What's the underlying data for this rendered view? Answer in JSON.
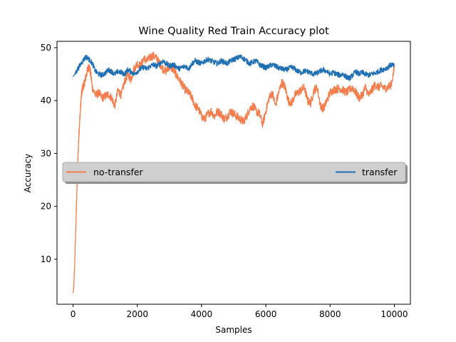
{
  "chart_data": {
    "type": "line",
    "title": "Wine Quality Red Train Accuracy plot",
    "xlabel": "Samples",
    "ylabel": "Accuracy",
    "xlim": [
      -500,
      10500
    ],
    "ylim": [
      1.5,
      51.2
    ],
    "xticks": [
      0,
      2000,
      4000,
      6000,
      8000,
      10000
    ],
    "yticks": [
      10,
      20,
      30,
      40,
      50
    ],
    "grid": false,
    "legend": {
      "placement": "center-left-right spanning",
      "entries": [
        "no-transfer",
        "transfer"
      ]
    },
    "series": [
      {
        "name": "no-transfer",
        "color": "#f47d4d",
        "noise": 0.8,
        "x": [
          0,
          20,
          50,
          80,
          110,
          140,
          170,
          200,
          230,
          260,
          300,
          350,
          400,
          450,
          500,
          550,
          600,
          700,
          800,
          900,
          1000,
          1100,
          1200,
          1300,
          1400,
          1500,
          1600,
          1700,
          1800,
          1900,
          2000,
          2100,
          2200,
          2300,
          2400,
          2500,
          2600,
          2700,
          2800,
          2900,
          3000,
          3100,
          3200,
          3300,
          3400,
          3500,
          3600,
          3700,
          3800,
          3900,
          4000,
          4100,
          4200,
          4300,
          4400,
          4500,
          4600,
          4700,
          4800,
          4900,
          5000,
          5100,
          5200,
          5300,
          5400,
          5500,
          5600,
          5700,
          5800,
          5900,
          6000,
          6100,
          6200,
          6300,
          6400,
          6500,
          6600,
          6700,
          6800,
          6900,
          7000,
          7100,
          7200,
          7300,
          7400,
          7500,
          7600,
          7700,
          7800,
          7900,
          8000,
          8100,
          8200,
          8300,
          8400,
          8500,
          8600,
          8700,
          8800,
          8900,
          9000,
          9100,
          9200,
          9300,
          9400,
          9500,
          9600,
          9700,
          9800,
          9900,
          10000
        ],
        "values": [
          3.6,
          4.5,
          9.0,
          15.0,
          21.0,
          27.0,
          32.0,
          35.5,
          38.5,
          41.0,
          42.5,
          43.2,
          44.5,
          45.8,
          46.5,
          45.0,
          42.5,
          41.0,
          41.5,
          40.5,
          40.8,
          41.2,
          40.5,
          39.0,
          42.0,
          41.0,
          43.5,
          45.0,
          44.0,
          46.0,
          47.0,
          46.5,
          48.0,
          47.5,
          48.2,
          48.5,
          48.0,
          47.0,
          46.0,
          45.5,
          46.5,
          46.0,
          45.0,
          44.0,
          43.0,
          42.0,
          41.5,
          40.5,
          39.0,
          38.5,
          37.0,
          36.5,
          37.5,
          38.0,
          37.0,
          38.0,
          37.5,
          36.5,
          37.0,
          38.0,
          37.5,
          37.0,
          36.5,
          36.0,
          37.0,
          38.5,
          39.0,
          38.0,
          37.5,
          35.5,
          38.0,
          40.5,
          41.5,
          39.0,
          41.5,
          43.5,
          42.5,
          40.0,
          39.5,
          41.0,
          41.5,
          42.0,
          42.5,
          40.0,
          39.5,
          42.0,
          42.5,
          39.0,
          38.5,
          40.0,
          41.5,
          42.0,
          42.2,
          42.3,
          42.0,
          41.5,
          42.0,
          42.5,
          41.5,
          40.5,
          41.0,
          42.5,
          41.0,
          42.0,
          43.0,
          42.5,
          42.8,
          42.3,
          42.5,
          43.0,
          46.0
        ]
      },
      {
        "name": "transfer",
        "color": "#1f6fb4",
        "noise": 0.5,
        "x": [
          0,
          100,
          200,
          300,
          400,
          500,
          600,
          700,
          800,
          900,
          1000,
          1100,
          1200,
          1300,
          1400,
          1500,
          1600,
          1700,
          1800,
          1900,
          2000,
          2100,
          2200,
          2300,
          2400,
          2500,
          2600,
          2700,
          2800,
          2900,
          3000,
          3100,
          3200,
          3300,
          3400,
          3500,
          3600,
          3700,
          3800,
          3900,
          4000,
          4100,
          4200,
          4300,
          4400,
          4500,
          4600,
          4700,
          4800,
          4900,
          5000,
          5100,
          5200,
          5300,
          5400,
          5500,
          5600,
          5700,
          5800,
          5900,
          6000,
          6100,
          6200,
          6300,
          6400,
          6500,
          6600,
          6700,
          6800,
          6900,
          7000,
          7100,
          7200,
          7300,
          7400,
          7500,
          7600,
          7700,
          7800,
          7900,
          8000,
          8100,
          8200,
          8300,
          8400,
          8500,
          8600,
          8700,
          8800,
          8900,
          9000,
          9100,
          9200,
          9300,
          9400,
          9500,
          9600,
          9700,
          9800,
          9900,
          10000
        ],
        "values": [
          44.5,
          45.5,
          46.5,
          47.5,
          48.3,
          47.8,
          47.0,
          45.5,
          45.0,
          44.8,
          45.2,
          45.8,
          45.5,
          45.0,
          45.5,
          45.3,
          45.0,
          45.8,
          45.5,
          45.0,
          45.5,
          46.0,
          46.3,
          46.0,
          46.5,
          46.8,
          46.5,
          47.0,
          47.5,
          47.0,
          46.5,
          46.8,
          46.5,
          46.0,
          46.3,
          46.5,
          46.0,
          47.0,
          47.5,
          47.2,
          47.0,
          47.5,
          47.8,
          47.5,
          47.2,
          47.0,
          47.5,
          47.3,
          47.0,
          47.5,
          47.8,
          48.0,
          48.3,
          48.0,
          47.5,
          47.0,
          47.3,
          47.5,
          46.8,
          46.5,
          46.2,
          46.5,
          46.8,
          46.5,
          46.2,
          46.0,
          45.8,
          46.0,
          46.3,
          46.0,
          45.5,
          45.3,
          45.6,
          45.5,
          45.2,
          45.0,
          45.2,
          45.6,
          45.8,
          45.5,
          45.0,
          45.3,
          45.0,
          44.8,
          45.0,
          44.5,
          44.2,
          44.8,
          45.5,
          45.0,
          45.3,
          45.0,
          44.8,
          45.0,
          45.2,
          45.5,
          45.8,
          46.0,
          46.3,
          46.8,
          46.5
        ]
      }
    ]
  }
}
